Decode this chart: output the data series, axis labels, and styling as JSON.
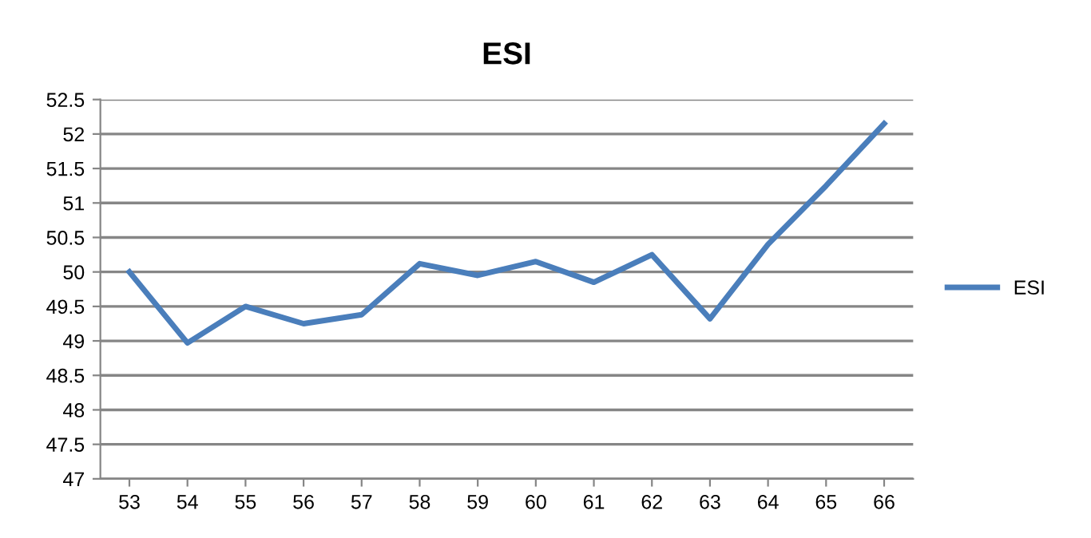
{
  "chart_data": {
    "type": "line",
    "title": "ESI",
    "categories": [
      "53",
      "54",
      "55",
      "56",
      "57",
      "58",
      "59",
      "60",
      "61",
      "62",
      "63",
      "64",
      "65",
      "66"
    ],
    "series": [
      {
        "name": "ESI",
        "color": "#4a7ebb",
        "values": [
          50.0,
          48.97,
          49.5,
          49.25,
          49.38,
          50.12,
          49.95,
          50.15,
          49.85,
          50.25,
          49.32,
          50.4,
          51.25,
          52.15
        ]
      }
    ],
    "ylim": [
      47,
      52.5
    ],
    "yticks": [
      47,
      47.5,
      48,
      48.5,
      49,
      49.5,
      50,
      50.5,
      51,
      51.5,
      52,
      52.5
    ],
    "grid": "y",
    "legend": "right",
    "marker": "none",
    "line_style": "solid"
  }
}
